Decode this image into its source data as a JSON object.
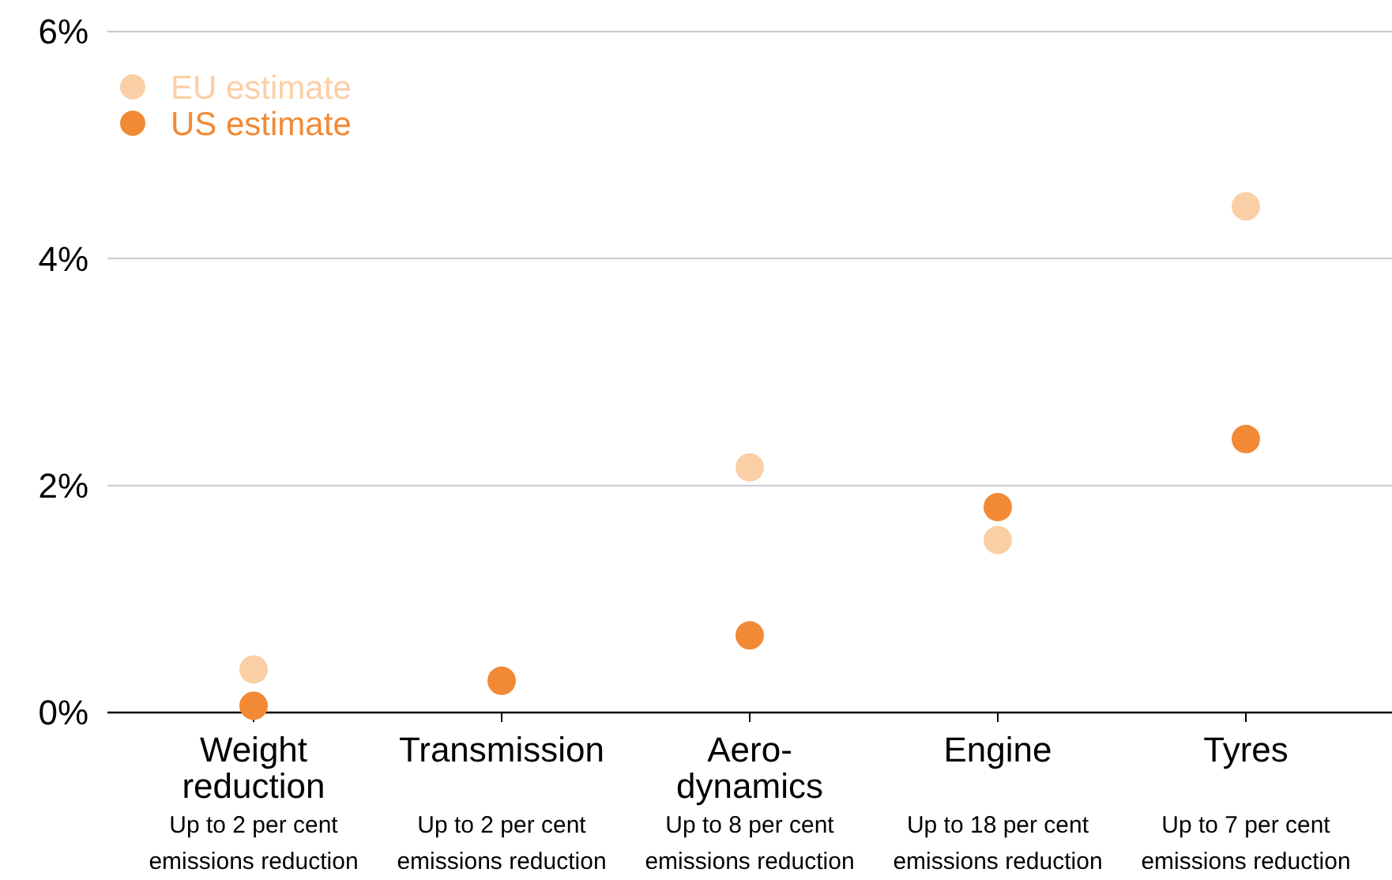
{
  "chart_data": {
    "type": "scatter",
    "categories": [
      "Weight reduction",
      "Transmission",
      "Aero-dynamics",
      "Engine",
      "Tyres"
    ],
    "series": [
      {
        "name": "EU estimate",
        "color": "#fbcfa6",
        "values": [
          0.38,
          null,
          2.16,
          1.52,
          4.46
        ]
      },
      {
        "name": "US estimate",
        "color": "#f28a35",
        "values": [
          0.06,
          0.28,
          0.68,
          1.81,
          2.41
        ]
      }
    ],
    "ylim": [
      0,
      6
    ],
    "yticks": [
      {
        "value": 0,
        "label": "0%"
      },
      {
        "value": 2,
        "label": "2%"
      },
      {
        "value": 4,
        "label": "4%"
      },
      {
        "value": 6,
        "label": "6%"
      }
    ],
    "grid": "y",
    "legend": "top left",
    "marker": "circle",
    "annotations": [
      "Up to 2 per cent emissions reduction",
      "Up to 2 per cent emissions reduction",
      "Up to 8 per cent emissions reduction",
      "Up to 18 per cent emissions reduction",
      "Up to 7 per cent emissions reduction"
    ]
  }
}
